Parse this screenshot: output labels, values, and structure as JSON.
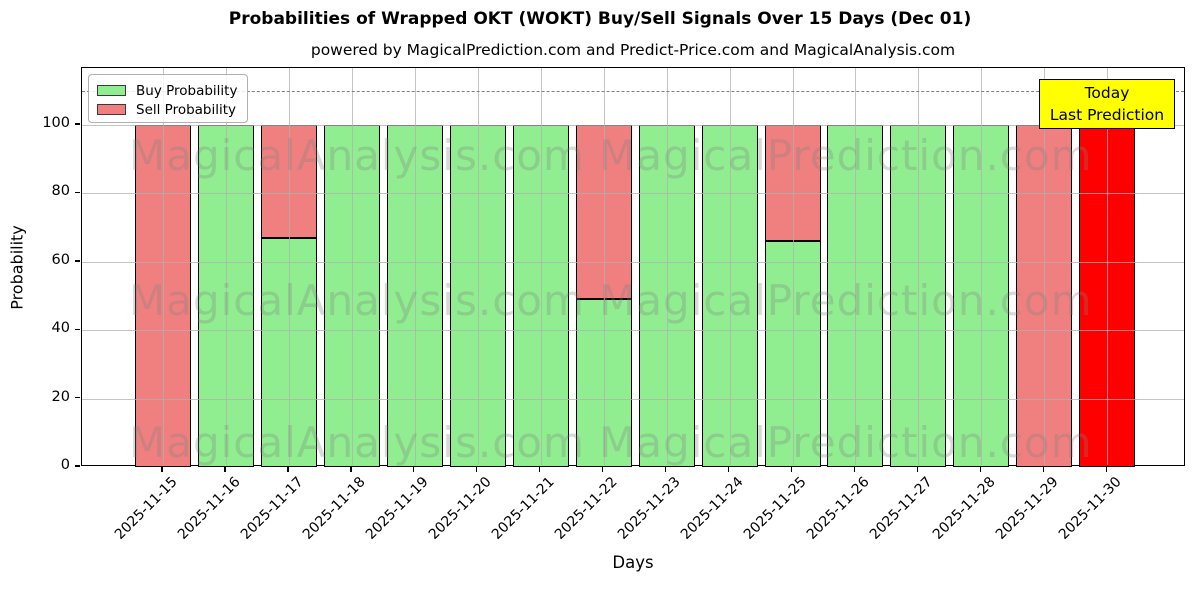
{
  "title": "Probabilities of Wrapped OKT (WOKT) Buy/Sell Signals Over 15 Days (Dec 01)",
  "subtitle": "powered by MagicalPrediction.com and Predict-Price.com and MagicalAnalysis.com",
  "legend": {
    "buy_label": "Buy Probability",
    "sell_label": "Sell Probability"
  },
  "annotation_box": {
    "line1": "Today",
    "line2": "Last Prediction",
    "bg_color": "#ffff00"
  },
  "watermarks": {
    "left_text": "MagicalAnalysis.com",
    "right_text": "MagicalPrediction.com"
  },
  "colors": {
    "buy": "#90ee90",
    "sell": "#f08080",
    "today_bar": "#ff0000",
    "grid": "#b0b0b0",
    "dashed_line": "#7f7f7f",
    "bar_edge": "#000000"
  },
  "chart_data": {
    "type": "bar",
    "stacked": true,
    "title": "Probabilities of Wrapped OKT (WOKT) Buy/Sell Signals Over 15 Days (Dec 01)",
    "xlabel": "Days",
    "ylabel": "Probability",
    "categories": [
      "2025-11-15",
      "2025-11-16",
      "2025-11-17",
      "2025-11-18",
      "2025-11-19",
      "2025-11-20",
      "2025-11-21",
      "2025-11-22",
      "2025-11-23",
      "2025-11-24",
      "2025-11-25",
      "2025-11-26",
      "2025-11-27",
      "2025-11-28",
      "2025-11-29",
      "2025-11-30"
    ],
    "series": [
      {
        "name": "Buy Probability",
        "color": "#90ee90",
        "values": [
          0,
          100,
          67,
          100,
          100,
          100,
          100,
          49,
          100,
          100,
          66,
          100,
          100,
          100,
          0,
          0
        ]
      },
      {
        "name": "Sell Probability",
        "color": "#f08080",
        "values": [
          100,
          0,
          33,
          0,
          0,
          0,
          0,
          51,
          0,
          0,
          34,
          0,
          0,
          0,
          100,
          0
        ]
      },
      {
        "name": "Today / Last Prediction",
        "color": "#ff0000",
        "values": [
          0,
          0,
          0,
          0,
          0,
          0,
          0,
          0,
          0,
          0,
          0,
          0,
          0,
          0,
          0,
          100
        ]
      }
    ],
    "ylim": [
      0,
      116.7
    ],
    "yticks": [
      0,
      20,
      40,
      60,
      80,
      100
    ],
    "dashed_line_y": 110,
    "grid": true,
    "legend_position": "upper left",
    "xtick_rotation": 45
  }
}
